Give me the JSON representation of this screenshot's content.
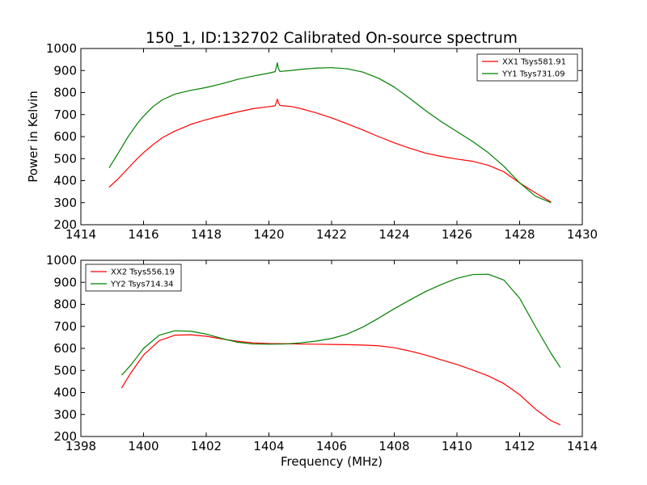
{
  "chart_data": [
    {
      "type": "line",
      "title": "150_1, ID:132702 Calibrated On-source spectrum",
      "xlabel": "",
      "ylabel": "Power in Kelvin",
      "xlim": [
        1414,
        1430
      ],
      "ylim": [
        200,
        1000
      ],
      "xticks": [
        1414,
        1416,
        1418,
        1420,
        1422,
        1424,
        1426,
        1428,
        1430
      ],
      "yticks": [
        200,
        300,
        400,
        500,
        600,
        700,
        800,
        900,
        1000
      ],
      "grid": false,
      "legend_position": "top-right",
      "series": [
        {
          "name": "XX1 Tsys581.91",
          "color": "#ff0000",
          "x": [
            1414.9,
            1415.2,
            1415.5,
            1415.8,
            1416.0,
            1416.3,
            1416.6,
            1417.0,
            1417.5,
            1418.0,
            1418.5,
            1419.0,
            1419.5,
            1420.0,
            1420.2,
            1420.27,
            1420.3,
            1420.35,
            1420.45,
            1420.7,
            1421.0,
            1421.5,
            1422.0,
            1422.5,
            1423.0,
            1423.5,
            1424.0,
            1424.5,
            1425.0,
            1425.5,
            1426.0,
            1426.5,
            1427.0,
            1427.5,
            1428.0,
            1428.5,
            1429.0
          ],
          "y": [
            370,
            410,
            455,
            500,
            527,
            563,
            595,
            625,
            655,
            677,
            695,
            712,
            727,
            736,
            740,
            770,
            755,
            742,
            740,
            737,
            728,
            708,
            685,
            658,
            630,
            600,
            572,
            547,
            525,
            510,
            498,
            488,
            470,
            440,
            390,
            345,
            303
          ]
        },
        {
          "name": "YY1 Tsys731.09",
          "color": "#008000",
          "x": [
            1414.9,
            1415.2,
            1415.5,
            1415.8,
            1416.0,
            1416.3,
            1416.6,
            1417.0,
            1417.5,
            1418.0,
            1418.5,
            1419.0,
            1419.5,
            1420.0,
            1420.2,
            1420.27,
            1420.3,
            1420.35,
            1420.45,
            1420.7,
            1421.0,
            1421.5,
            1422.0,
            1422.5,
            1423.0,
            1423.5,
            1424.0,
            1424.5,
            1425.0,
            1425.5,
            1426.0,
            1426.5,
            1427.0,
            1427.5,
            1428.0,
            1428.5,
            1429.0
          ],
          "y": [
            458,
            527,
            598,
            659,
            693,
            736,
            767,
            793,
            810,
            823,
            840,
            860,
            875,
            888,
            895,
            935,
            910,
            896,
            897,
            900,
            905,
            911,
            913,
            908,
            893,
            865,
            825,
            773,
            718,
            668,
            623,
            578,
            527,
            465,
            390,
            330,
            300
          ]
        }
      ]
    },
    {
      "type": "line",
      "title": "",
      "xlabel": "Frequency (MHz)",
      "ylabel": "",
      "xlim": [
        1398,
        1414
      ],
      "ylim": [
        200,
        1000
      ],
      "xticks": [
        1398,
        1400,
        1402,
        1404,
        1406,
        1408,
        1410,
        1412,
        1414
      ],
      "yticks": [
        200,
        300,
        400,
        500,
        600,
        700,
        800,
        900,
        1000
      ],
      "grid": false,
      "legend_position": "top-left",
      "series": [
        {
          "name": "XX2 Tsys556.19",
          "color": "#ff0000",
          "x": [
            1399.3,
            1399.6,
            1400.0,
            1400.5,
            1401.0,
            1401.5,
            1402.0,
            1402.5,
            1403.0,
            1403.5,
            1404.0,
            1404.5,
            1405.0,
            1405.5,
            1406.0,
            1406.5,
            1407.0,
            1407.5,
            1408.0,
            1408.5,
            1409.0,
            1409.5,
            1410.0,
            1410.5,
            1411.0,
            1411.5,
            1412.0,
            1412.5,
            1413.0,
            1413.3
          ],
          "y": [
            420,
            490,
            570,
            635,
            660,
            662,
            655,
            643,
            632,
            625,
            622,
            621,
            620,
            619,
            618,
            617,
            615,
            612,
            603,
            588,
            570,
            548,
            527,
            502,
            475,
            440,
            390,
            325,
            272,
            253
          ]
        },
        {
          "name": "YY2 Tsys714.34",
          "color": "#008000",
          "x": [
            1399.3,
            1399.6,
            1400.0,
            1400.5,
            1401.0,
            1401.5,
            1402.0,
            1402.5,
            1403.0,
            1403.5,
            1404.0,
            1404.5,
            1405.0,
            1405.5,
            1406.0,
            1406.5,
            1407.0,
            1407.5,
            1408.0,
            1408.5,
            1409.0,
            1409.5,
            1410.0,
            1410.5,
            1411.0,
            1411.5,
            1412.0,
            1412.5,
            1413.0,
            1413.3
          ],
          "y": [
            478,
            525,
            600,
            660,
            680,
            678,
            665,
            645,
            628,
            620,
            619,
            620,
            625,
            633,
            645,
            665,
            697,
            737,
            780,
            820,
            858,
            890,
            918,
            935,
            937,
            910,
            828,
            700,
            578,
            513
          ]
        }
      ]
    }
  ]
}
